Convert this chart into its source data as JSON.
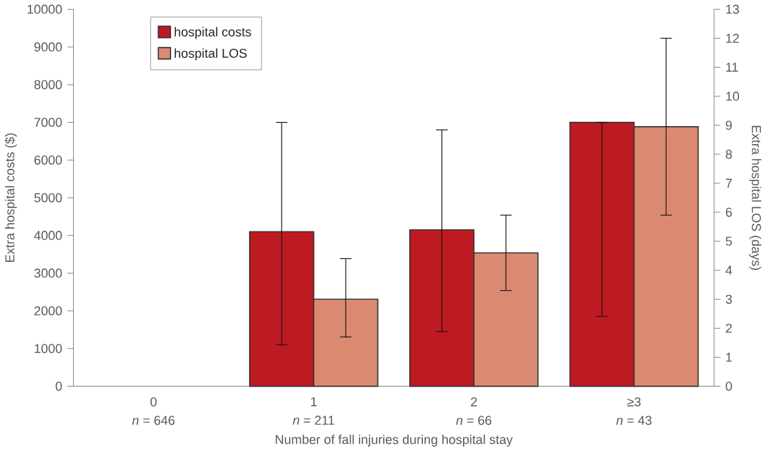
{
  "chart_data": {
    "type": "bar",
    "categories": [
      "0",
      "1",
      "2",
      "≥3"
    ],
    "xlabel": "Number of fall injuries during hospital stay",
    "ylabel": "Extra hospital costs ($)",
    "y2label": "Extra hospital LOS (days)",
    "annotations": [
      "*n* = 646",
      "*n* = 211",
      "*n* = 66",
      "*n* = 43"
    ],
    "series": [
      {
        "name": "hospital costs",
        "color": "#be1a22",
        "values": [
          null,
          4100,
          4150,
          7000
        ],
        "errors": [
          null,
          [
            1100,
            7000
          ],
          [
            1450,
            6800
          ],
          [
            1850,
            7000
          ]
        ]
      },
      {
        "name": "hospital LOS",
        "color": "#db8a72",
        "axis": "y2",
        "values": [
          null,
          3.0,
          4.6,
          8.95
        ],
        "errors": [
          null,
          [
            1.7,
            4.4
          ],
          [
            3.3,
            5.9
          ],
          [
            5.9,
            12.0
          ]
        ]
      }
    ],
    "ylim": [
      0,
      10000
    ],
    "yticks": [
      0,
      1000,
      2000,
      3000,
      4000,
      5000,
      6000,
      7000,
      8000,
      9000,
      10000
    ],
    "y2lim": [
      0,
      13
    ],
    "y2ticks": [
      0,
      1,
      2,
      3,
      4,
      5,
      6,
      7,
      8,
      9,
      10,
      11,
      12,
      13
    ],
    "legend": "top left",
    "grid": false
  }
}
